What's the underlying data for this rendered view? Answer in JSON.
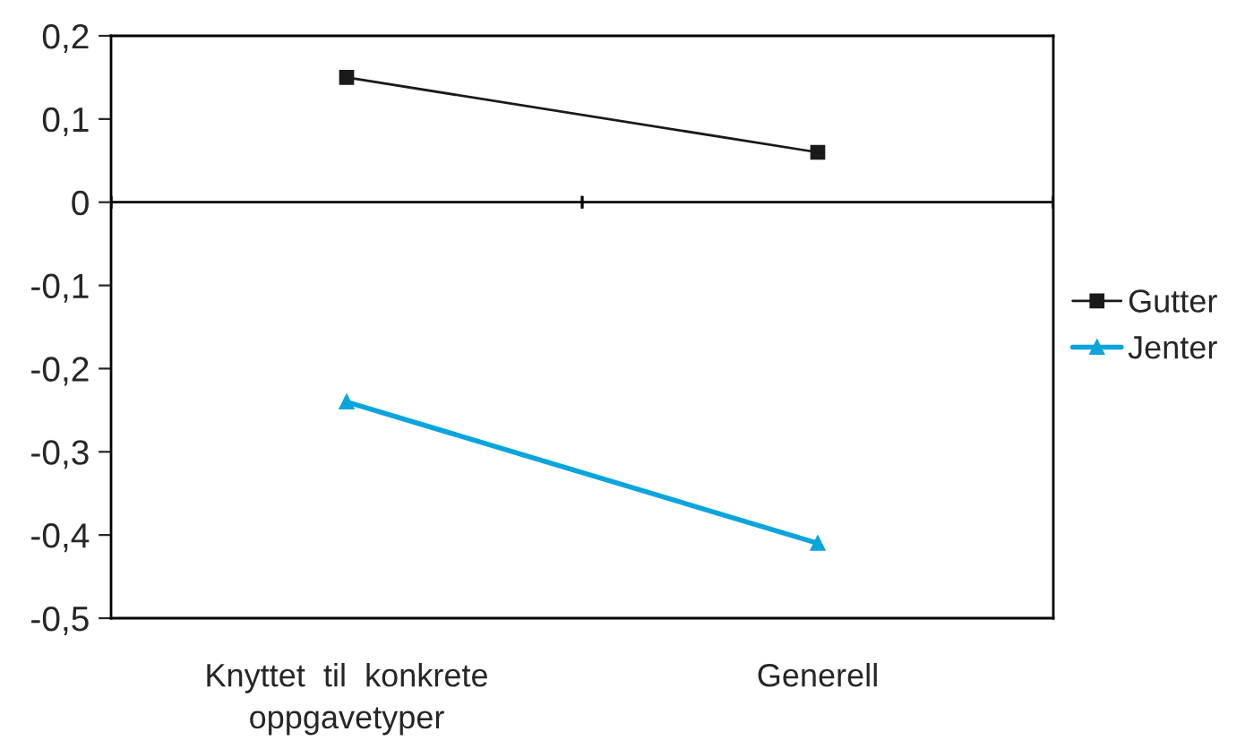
{
  "chart_data": {
    "type": "line",
    "categories": [
      "Knyttet  til  konkrete\noppgavetyper",
      "Generell"
    ],
    "series": [
      {
        "name": "Gutter",
        "color": "#1a1a1a",
        "marker": "square",
        "values": [
          0.15,
          0.06
        ]
      },
      {
        "name": "Jenter",
        "color": "#0aa5dc",
        "marker": "triangle",
        "values": [
          -0.24,
          -0.41
        ]
      }
    ],
    "ylim": [
      -0.5,
      0.2
    ],
    "yticks": [
      {
        "value": -0.5,
        "label": "-0,5"
      },
      {
        "value": -0.4,
        "label": "-0,4"
      },
      {
        "value": -0.3,
        "label": "-0,3"
      },
      {
        "value": -0.2,
        "label": "-0,2"
      },
      {
        "value": -0.1,
        "label": "-0,1"
      },
      {
        "value": 0,
        "label": "0"
      },
      {
        "value": 0.1,
        "label": "0,1"
      },
      {
        "value": 0.2,
        "label": "0,2"
      }
    ],
    "ref_lines": [
      {
        "axis": "y",
        "value": 0,
        "color": "#000000"
      }
    ],
    "grid": false,
    "legend": "right"
  }
}
